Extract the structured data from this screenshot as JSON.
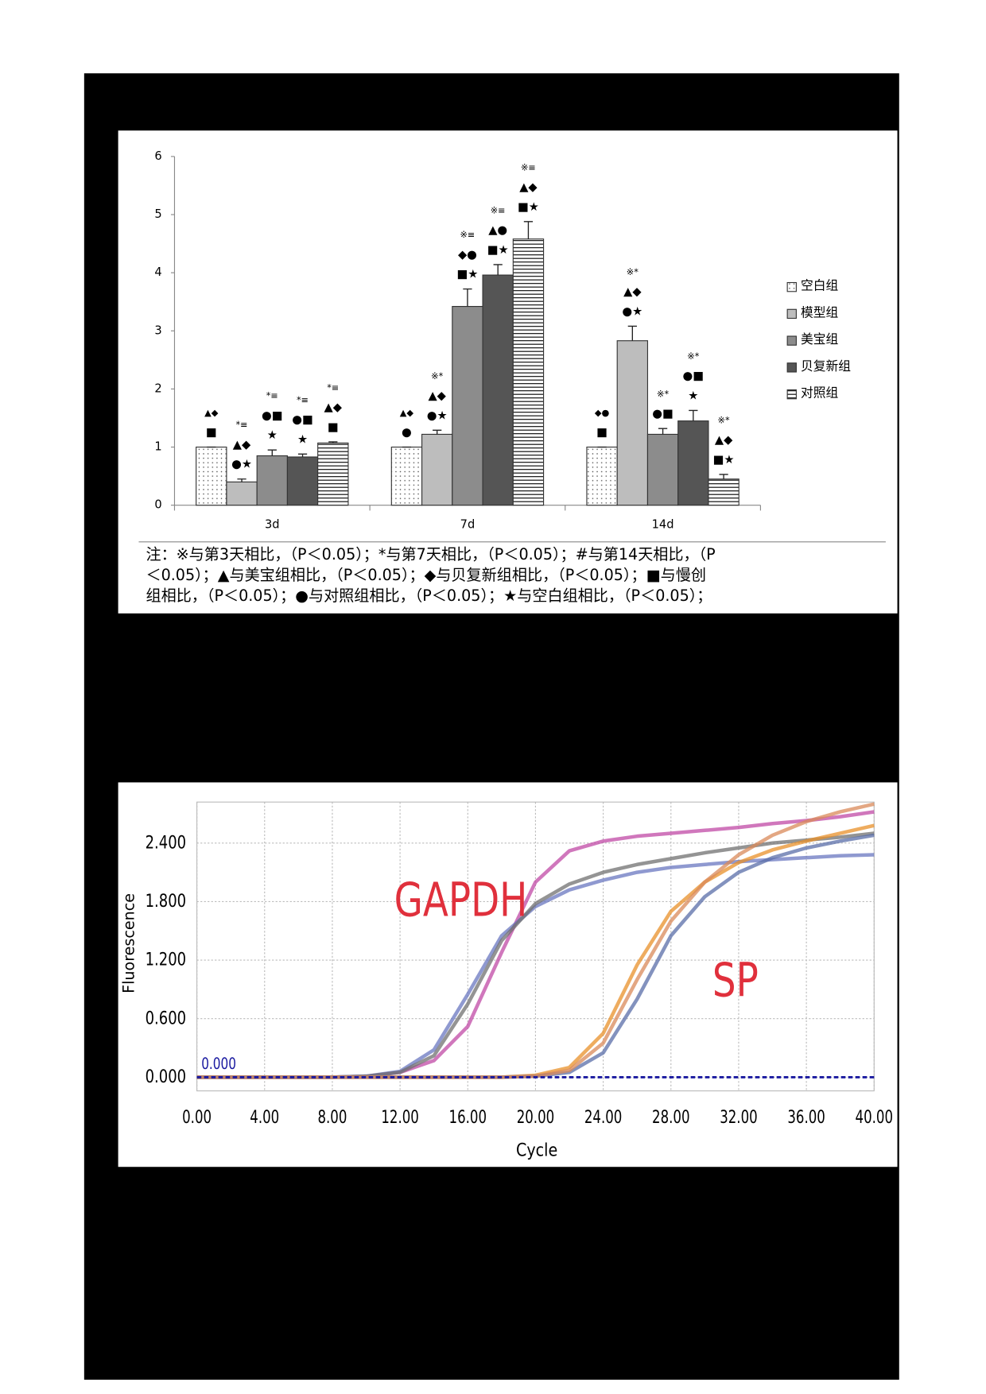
{
  "chart_data": [
    {
      "type": "bar",
      "categories": [
        "3d",
        "7d",
        "14d"
      ],
      "ylim": [
        0,
        6
      ],
      "yticks": [
        0,
        1,
        2,
        3,
        4,
        5,
        6
      ],
      "series": [
        {
          "name": "空白组",
          "color": "#ffffff",
          "pattern": "dots",
          "values": [
            1,
            1,
            1
          ],
          "errors": [
            0,
            0,
            0
          ],
          "annotations": [
            [
              "▲◆",
              "■"
            ],
            [
              "▲◆",
              "●"
            ],
            [
              "◆●",
              "■"
            ]
          ]
        },
        {
          "name": "模型组",
          "color": "#bdbdbd",
          "values": [
            0.4,
            1.22,
            2.83
          ],
          "errors": [
            0.05,
            0.07,
            0.25
          ],
          "annotations": [
            [
              "*≡",
              "▲◆",
              "●★"
            ],
            [
              "※*",
              "▲◆",
              "●★"
            ],
            [
              "※*",
              "▲◆",
              "●★"
            ]
          ]
        },
        {
          "name": "美宝组",
          "color": "#8c8c8c",
          "values": [
            0.85,
            3.42,
            1.22
          ],
          "errors": [
            0.1,
            0.3,
            0.1
          ],
          "annotations": [
            [
              "*≡",
              "●■",
              "★"
            ],
            [
              "※≡",
              "◆●",
              "■★"
            ],
            [
              "※*",
              "●■"
            ]
          ]
        },
        {
          "name": "贝复新组",
          "color": "#555555",
          "values": [
            0.83,
            3.96,
            1.45
          ],
          "errors": [
            0.05,
            0.18,
            0.18
          ],
          "annotations": [
            [
              "*≡",
              "●■",
              "★"
            ],
            [
              "※≡",
              "▲●",
              "■★"
            ],
            [
              "※*",
              "●■",
              "★"
            ]
          ]
        },
        {
          "name": "对照组",
          "color": "#ffffff",
          "pattern": "hlines",
          "values": [
            1.07,
            4.58,
            0.45
          ],
          "errors": [
            0.02,
            0.3,
            0.08
          ],
          "annotations": [
            [
              "*≡",
              "▲◆",
              "■"
            ],
            [
              "※≡",
              "▲◆",
              "■★"
            ],
            [
              "※*",
              "▲◆",
              "■★"
            ]
          ]
        }
      ],
      "note_lines": [
        "注：※与第3天相比，（P＜0.05）；*与第7天相比，（P＜0.05）；#与第14天相比，（P",
        "＜0.05）；▲与美宝组相比，（P＜0.05）；◆与贝复新组相比，（P＜0.05）；■与慢创",
        "组相比，（P＜0.05）；●与对照组相比，（P＜0.05）；★与空白组相比，（P＜0.05）；"
      ]
    },
    {
      "type": "line",
      "xlabel": "Cycle",
      "ylabel": "Fluorescence",
      "annotations": [
        "GAPDH",
        "SP"
      ],
      "threshold": {
        "value": 0,
        "label": "0.000",
        "color": "#1a1aa0"
      },
      "x": [
        0,
        2,
        4,
        6,
        8,
        10,
        12,
        14,
        16,
        18,
        20,
        22,
        24,
        26,
        28,
        30,
        32,
        34,
        36,
        38,
        40
      ],
      "xlim": [
        0,
        40
      ],
      "xticks": [
        {
          "value": 0,
          "label": "0.00"
        },
        {
          "value": 4,
          "label": "4.00"
        },
        {
          "value": 8,
          "label": "8.00"
        },
        {
          "value": 12,
          "label": "12.00"
        },
        {
          "value": 16,
          "label": "16.00"
        },
        {
          "value": 20,
          "label": "20.00"
        },
        {
          "value": 24,
          "label": "24.00"
        },
        {
          "value": 28,
          "label": "28.00"
        },
        {
          "value": 32,
          "label": "32.00"
        },
        {
          "value": 36,
          "label": "36.00"
        },
        {
          "value": 40,
          "label": "40.00"
        }
      ],
      "ylim": [
        -0.14,
        2.82
      ],
      "yticks": [
        {
          "value": 0,
          "label": "0.000"
        },
        {
          "value": 0.6,
          "label": "0.600"
        },
        {
          "value": 1.2,
          "label": "1.200"
        },
        {
          "value": 1.8,
          "label": "1.800"
        },
        {
          "value": 2.4,
          "label": "2.400"
        }
      ],
      "grid": true,
      "series": [
        {
          "color": "#c04aa6",
          "values": [
            0,
            0,
            0,
            0,
            0,
            0.01,
            0.05,
            0.17,
            0.52,
            1.28,
            2.0,
            2.32,
            2.42,
            2.47,
            2.5,
            2.53,
            2.56,
            2.6,
            2.63,
            2.67,
            2.72
          ]
        },
        {
          "color": "#6a77c0",
          "values": [
            0,
            0,
            0,
            0,
            0,
            0.01,
            0.06,
            0.28,
            0.85,
            1.45,
            1.75,
            1.92,
            2.02,
            2.1,
            2.15,
            2.18,
            2.21,
            2.23,
            2.25,
            2.27,
            2.28
          ]
        },
        {
          "color": "#707070",
          "values": [
            0,
            0,
            0,
            0,
            0,
            0.01,
            0.05,
            0.22,
            0.75,
            1.4,
            1.78,
            1.98,
            2.1,
            2.18,
            2.24,
            2.3,
            2.35,
            2.4,
            2.43,
            2.46,
            2.5
          ]
        },
        {
          "color": "#e8902a",
          "values": [
            0,
            0,
            0,
            0,
            0,
            0,
            0,
            0,
            0,
            0,
            0.02,
            0.1,
            0.45,
            1.15,
            1.7,
            2.0,
            2.2,
            2.33,
            2.42,
            2.5,
            2.58
          ]
        },
        {
          "color": "#5a6ea8",
          "values": [
            0,
            0,
            0,
            0,
            0,
            0,
            0,
            0,
            0,
            0,
            0.01,
            0.05,
            0.25,
            0.8,
            1.45,
            1.85,
            2.1,
            2.25,
            2.35,
            2.42,
            2.48
          ]
        },
        {
          "color": "#d98a5a",
          "values": [
            0,
            0,
            0,
            0,
            0,
            0,
            0,
            0,
            0,
            0,
            0.01,
            0.07,
            0.35,
            1.0,
            1.6,
            2.0,
            2.28,
            2.48,
            2.62,
            2.72,
            2.8
          ]
        }
      ]
    }
  ]
}
